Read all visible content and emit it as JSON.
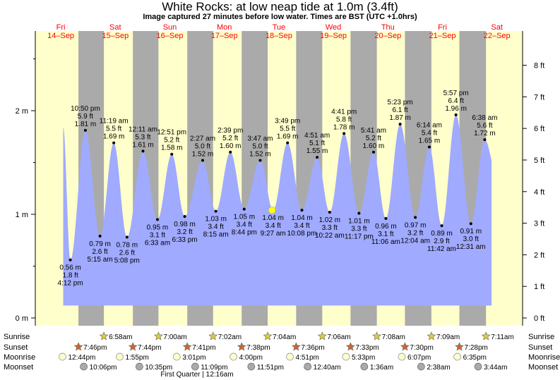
{
  "title": "White Rocks: at low  neap tide at 1.0m (3.4ft)",
  "subtitle": "Image captured 27 minutes before low water. Times are BST (UTC +1.0hrs)",
  "colors": {
    "day": "#ffffcc",
    "night": "#aaaaaa",
    "water": "#a0aaff",
    "day_label": "#ff0000",
    "sun_star": "#ddcc33",
    "sunset_star": "#cc6633",
    "moon": "#ffffcc",
    "moonset": "#aaaaaa",
    "current": "#ffff00"
  },
  "chart_data": {
    "type": "area",
    "title": "White Rocks: at low  neap tide at 1.0m (3.4ft)",
    "days": [
      {
        "dow": "Fri",
        "date": "14–Sep"
      },
      {
        "dow": "Sat",
        "date": "15–Sep"
      },
      {
        "dow": "Sun",
        "date": "16–Sep"
      },
      {
        "dow": "Mon",
        "date": "17–Sep"
      },
      {
        "dow": "Tue",
        "date": "18–Sep"
      },
      {
        "dow": "Wed",
        "date": "19–Sep"
      },
      {
        "dow": "Thu",
        "date": "20–Sep"
      },
      {
        "dow": "Fri",
        "date": "21–Sep"
      },
      {
        "dow": "Sat",
        "date": "22–Sep"
      }
    ],
    "y_left": {
      "unit": "m",
      "ticks": [
        "0 m",
        "1 m",
        "2 m"
      ],
      "values": [
        0,
        1,
        2
      ]
    },
    "y_right": {
      "unit": "ft",
      "ticks": [
        "0 ft",
        "1 ft",
        "2 ft",
        "3 ft",
        "4 ft",
        "5 ft",
        "6 ft",
        "7 ft",
        "8 ft"
      ],
      "values": [
        0,
        1,
        2,
        3,
        4,
        5,
        6,
        7,
        8
      ]
    },
    "start_level_m": 1.84,
    "tides": [
      {
        "kind": "low",
        "day": 0,
        "time": "4:12 pm",
        "h": 16.2,
        "m": "0.56 m",
        "ft": "1.8 ft"
      },
      {
        "kind": "high",
        "day": 0,
        "time": "10:50 pm",
        "h": 22.83,
        "m": "1.81 m",
        "ft": "5.9 ft"
      },
      {
        "kind": "low",
        "day": 1,
        "time": "5:15 am",
        "h": 5.25,
        "m": "0.79 m",
        "ft": "2.6 ft"
      },
      {
        "kind": "high",
        "day": 1,
        "time": "11:19 am",
        "h": 11.32,
        "m": "1.69 m",
        "ft": "5.5 ft"
      },
      {
        "kind": "low",
        "day": 1,
        "time": "5:08 pm",
        "h": 17.13,
        "m": "0.78 m",
        "ft": "2.6 ft"
      },
      {
        "kind": "high",
        "day": 1,
        "time": "12:11 am",
        "h": 24.18,
        "m": "1.61 m",
        "ft": "5.3 ft"
      },
      {
        "kind": "low",
        "day": 2,
        "time": "6:33 am",
        "h": 6.55,
        "m": "0.95 m",
        "ft": "3.1 ft"
      },
      {
        "kind": "high",
        "day": 2,
        "time": "12:51 pm",
        "h": 12.85,
        "m": "1.58 m",
        "ft": "5.2 ft"
      },
      {
        "kind": "low",
        "day": 2,
        "time": "6:33 pm",
        "h": 18.55,
        "m": "0.98 m",
        "ft": "3.2 ft"
      },
      {
        "kind": "high",
        "day": 3,
        "time": "2:27 am",
        "h": 2.45,
        "m": "1.52 m",
        "ft": "5.0 ft"
      },
      {
        "kind": "low",
        "day": 3,
        "time": "8:15 am",
        "h": 8.25,
        "m": "1.03 m",
        "ft": "3.4 ft"
      },
      {
        "kind": "high",
        "day": 3,
        "time": "2:39 pm",
        "h": 14.65,
        "m": "1.60 m",
        "ft": "5.2 ft"
      },
      {
        "kind": "low",
        "day": 3,
        "time": "8:44 pm",
        "h": 20.73,
        "m": "1.05 m",
        "ft": "3.4 ft"
      },
      {
        "kind": "high",
        "day": 4,
        "time": "3:47 am",
        "h": 3.78,
        "m": "1.52 m",
        "ft": "5.0 ft"
      },
      {
        "kind": "low",
        "day": 4,
        "time": "9:27 am",
        "h": 9.45,
        "m": "1.04 m",
        "ft": "3.4 ft"
      },
      {
        "kind": "high",
        "day": 4,
        "time": "3:49 pm",
        "h": 15.82,
        "m": "1.69 m",
        "ft": "5.5 ft"
      },
      {
        "kind": "low",
        "day": 4,
        "time": "10:08 pm",
        "h": 22.13,
        "m": "1.04 m",
        "ft": "3.4 ft"
      },
      {
        "kind": "high",
        "day": 5,
        "time": "4:51 am",
        "h": 4.85,
        "m": "1.55 m",
        "ft": "5.1 ft"
      },
      {
        "kind": "low",
        "day": 5,
        "time": "10:22 am",
        "h": 10.37,
        "m": "1.02 m",
        "ft": "3.3 ft"
      },
      {
        "kind": "high",
        "day": 5,
        "time": "4:41 pm",
        "h": 16.68,
        "m": "1.78 m",
        "ft": "5.8 ft"
      },
      {
        "kind": "low",
        "day": 5,
        "time": "11:17 pm",
        "h": 23.28,
        "m": "1.01 m",
        "ft": "3.3 ft"
      },
      {
        "kind": "high",
        "day": 6,
        "time": "5:41 am",
        "h": 5.68,
        "m": "1.60 m",
        "ft": "5.2 ft"
      },
      {
        "kind": "low",
        "day": 6,
        "time": "11:06 am",
        "h": 11.1,
        "m": "0.96 m",
        "ft": "3.1 ft"
      },
      {
        "kind": "high",
        "day": 6,
        "time": "5:23 pm",
        "h": 17.38,
        "m": "1.87 m",
        "ft": "6.1 ft"
      },
      {
        "kind": "low",
        "day": 7,
        "time": "12:04 am",
        "h": 0.07,
        "m": "0.97 m",
        "ft": "3.2 ft"
      },
      {
        "kind": "high",
        "day": 7,
        "time": "6:14 am",
        "h": 6.23,
        "m": "1.65 m",
        "ft": "5.4 ft"
      },
      {
        "kind": "low",
        "day": 7,
        "time": "11:42 am",
        "h": 11.7,
        "m": "0.89 m",
        "ft": "2.9 ft"
      },
      {
        "kind": "high",
        "day": 7,
        "time": "5:57 pm",
        "h": 17.95,
        "m": "1.96 m",
        "ft": "6.4 ft"
      },
      {
        "kind": "low",
        "day": 8,
        "time": "12:31 am",
        "h": 0.52,
        "m": "0.91 m",
        "ft": "3.0 ft"
      },
      {
        "kind": "high",
        "day": 8,
        "time": "6:38 am",
        "h": 6.63,
        "m": "1.72 m",
        "ft": "5.6 ft"
      }
    ],
    "end_level_m": 1.52,
    "current": {
      "day": 4,
      "h": 9.0,
      "level_m": 1.04
    },
    "sunrise": [
      {
        "day": 1,
        "time": "6:58am",
        "h": 6.97
      },
      {
        "day": 2,
        "time": "7:00am",
        "h": 7.0
      },
      {
        "day": 3,
        "time": "7:02am",
        "h": 7.03
      },
      {
        "day": 4,
        "time": "7:04am",
        "h": 7.07
      },
      {
        "day": 5,
        "time": "7:06am",
        "h": 7.1
      },
      {
        "day": 6,
        "time": "7:08am",
        "h": 7.13
      },
      {
        "day": 7,
        "time": "7:09am",
        "h": 7.15
      },
      {
        "day": 8,
        "time": "7:11am",
        "h": 7.18
      }
    ],
    "sunset": [
      {
        "day": 0,
        "time": "7:46pm",
        "h": 19.77
      },
      {
        "day": 1,
        "time": "7:44pm",
        "h": 19.73
      },
      {
        "day": 2,
        "time": "7:41pm",
        "h": 19.68
      },
      {
        "day": 3,
        "time": "7:38pm",
        "h": 19.63
      },
      {
        "day": 4,
        "time": "7:36pm",
        "h": 19.6
      },
      {
        "day": 5,
        "time": "7:33pm",
        "h": 19.55
      },
      {
        "day": 6,
        "time": "7:30pm",
        "h": 19.5
      },
      {
        "day": 7,
        "time": "7:28pm",
        "h": 19.47
      }
    ],
    "moonrise": [
      {
        "day": 0,
        "time": "12:44pm",
        "h": 12.73
      },
      {
        "day": 1,
        "time": "1:55pm",
        "h": 13.92
      },
      {
        "day": 2,
        "time": "3:01pm",
        "h": 15.02
      },
      {
        "day": 3,
        "time": "4:00pm",
        "h": 16.0
      },
      {
        "day": 4,
        "time": "4:51pm",
        "h": 16.85
      },
      {
        "day": 5,
        "time": "5:33pm",
        "h": 17.55
      },
      {
        "day": 6,
        "time": "6:07pm",
        "h": 18.12
      },
      {
        "day": 7,
        "time": "6:35pm",
        "h": 18.58
      }
    ],
    "moonset": [
      {
        "day": 0,
        "time": "10:06pm",
        "h": 22.1
      },
      {
        "day": 1,
        "time": "10:35pm",
        "h": 22.58
      },
      {
        "day": 2,
        "time": "11:09pm",
        "h": 23.15
      },
      {
        "day": 3,
        "time": "11:51pm",
        "h": 23.85
      },
      {
        "day": 5,
        "time": "12:40am",
        "h": 0.67
      },
      {
        "day": 6,
        "time": "1:36am",
        "h": 1.6
      },
      {
        "day": 7,
        "time": "2:38am",
        "h": 2.63
      },
      {
        "day": 8,
        "time": "3:44am",
        "h": 3.73
      }
    ],
    "row_labels": {
      "sunrise": "Sunrise",
      "sunset": "Sunset",
      "moonrise": "Moonrise",
      "moonset": "Moonset"
    },
    "moon_phase": {
      "text": "First Quarter | 12:16am",
      "day": 3,
      "h": 0.27
    }
  }
}
